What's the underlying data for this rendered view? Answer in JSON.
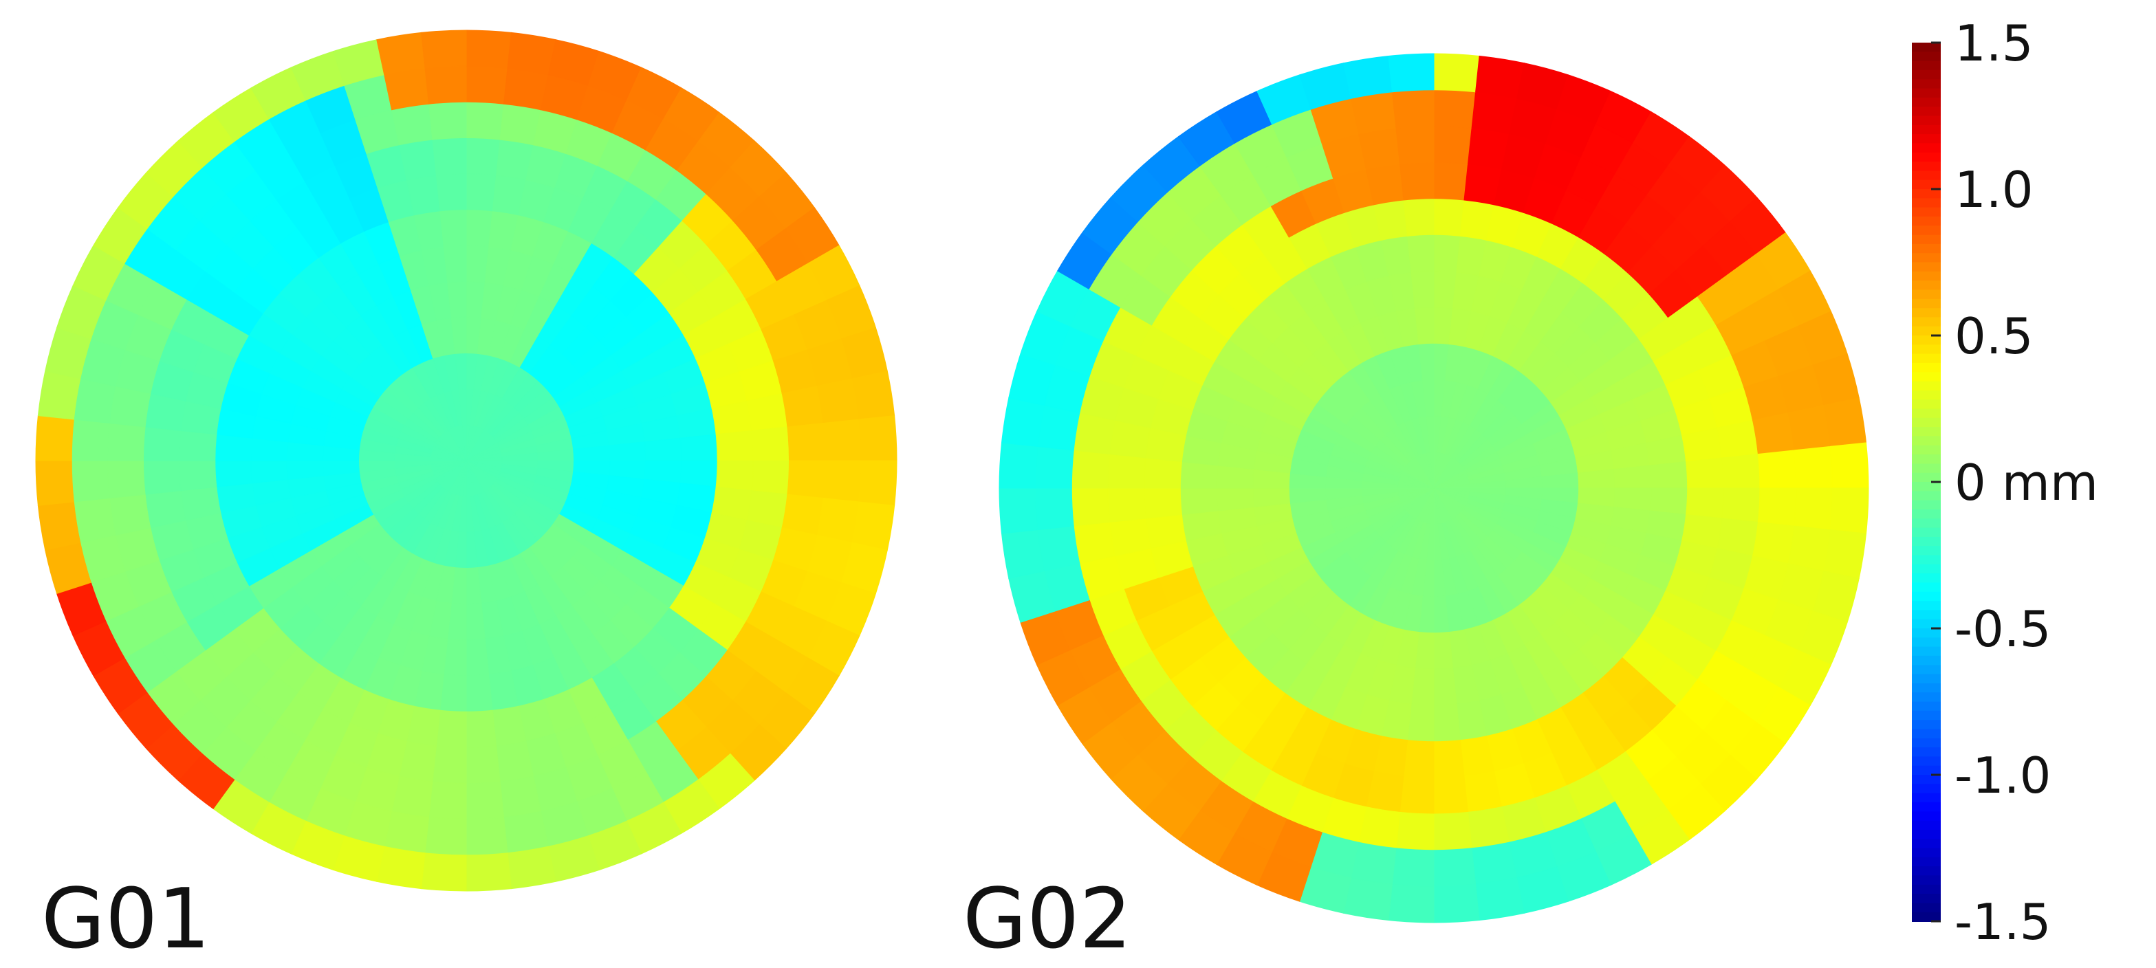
{
  "chart_data": {
    "type": "heatmap",
    "projection": "polar",
    "panels": [
      {
        "label": "G01",
        "background": 0.0,
        "features": [
          {
            "ring": [
              0.0,
              0.25
            ],
            "angle": [
              0,
              360
            ],
            "value": -0.15
          },
          {
            "ring": [
              0.25,
              0.62
            ],
            "angle": [
              0,
              360
            ],
            "value": -0.35
          },
          {
            "ring": [
              0.25,
              0.62
            ],
            "angle": [
              120,
              240
            ],
            "value": -0.05
          },
          {
            "ring": [
              0.25,
              0.62
            ],
            "angle": [
              345,
              30
            ],
            "value": -0.05
          },
          {
            "ring": [
              0.62,
              0.75
            ],
            "angle": [
              0,
              360
            ],
            "value": -0.1
          },
          {
            "ring": [
              0.6,
              0.9
            ],
            "angle": [
              300,
              345
            ],
            "value": -0.4
          },
          {
            "ring": [
              0.6,
              0.9
            ],
            "angle": [
              150,
              235
            ],
            "value": 0.1
          },
          {
            "ring": [
              0.6,
              0.95
            ],
            "angle": [
              45,
              125
            ],
            "value": 0.3
          },
          {
            "ring": [
              0.72,
              1.0
            ],
            "angle": [
              40,
              145
            ],
            "value": 0.5
          },
          {
            "ring": [
              0.85,
              1.0
            ],
            "angle": [
              350,
              60
            ],
            "value": 0.75
          },
          {
            "ring": [
              0.88,
              1.0
            ],
            "angle": [
              215,
              255
            ],
            "value": 1.0
          },
          {
            "ring": [
              0.9,
              1.0
            ],
            "angle": [
              255,
              275
            ],
            "value": 0.55
          },
          {
            "ring": [
              0.88,
              1.0
            ],
            "angle": [
              140,
              215
            ],
            "value": 0.25
          },
          {
            "ring": [
              0.9,
              1.0
            ],
            "angle": [
              275,
              350
            ],
            "value": 0.2
          }
        ]
      },
      {
        "label": "G02",
        "background": 0.3,
        "features": [
          {
            "ring": [
              0.0,
              0.32
            ],
            "angle": [
              0,
              360
            ],
            "value": 0.0
          },
          {
            "ring": [
              0.32,
              0.55
            ],
            "angle": [
              0,
              360
            ],
            "value": 0.15
          },
          {
            "ring": [
              0.55,
              0.75
            ],
            "angle": [
              130,
              250
            ],
            "value": 0.45
          },
          {
            "ring": [
              0.7,
              0.95
            ],
            "angle": [
              330,
              30
            ],
            "value": 0.75
          },
          {
            "ring": [
              0.7,
              1.0
            ],
            "angle": [
              5,
              55
            ],
            "value": 1.1
          },
          {
            "ring": [
              0.75,
              1.0
            ],
            "angle": [
              55,
              85
            ],
            "value": 0.6
          },
          {
            "ring": [
              0.75,
              1.0
            ],
            "angle": [
              85,
              145
            ],
            "value": 0.35
          },
          {
            "ring": [
              0.85,
              1.0
            ],
            "angle": [
              200,
              255
            ],
            "value": 0.7
          },
          {
            "ring": [
              0.85,
              1.0
            ],
            "angle": [
              150,
              200
            ],
            "value": -0.2
          },
          {
            "ring": [
              0.8,
              1.0
            ],
            "angle": [
              255,
              300
            ],
            "value": -0.3
          },
          {
            "ring": [
              0.82,
              1.0
            ],
            "angle": [
              300,
              335
            ],
            "value": -0.75
          },
          {
            "ring": [
              0.9,
              1.0
            ],
            "angle": [
              335,
              360
            ],
            "value": -0.4
          },
          {
            "ring": [
              0.78,
              0.9
            ],
            "angle": [
              300,
              340
            ],
            "value": 0.1
          }
        ]
      }
    ],
    "colorbar": {
      "min": -1.5,
      "max": 1.5,
      "colormap": "jet",
      "ticks": [
        {
          "value": 1.5,
          "label": "1.5"
        },
        {
          "value": 1.0,
          "label": "1.0"
        },
        {
          "value": 0.5,
          "label": "0.5"
        },
        {
          "value": 0.0,
          "label": "0 mm"
        },
        {
          "value": -0.5,
          "label": "-0.5"
        },
        {
          "value": -1.0,
          "label": "-1.0"
        },
        {
          "value": -1.5,
          "label": "-1.5"
        }
      ]
    }
  }
}
